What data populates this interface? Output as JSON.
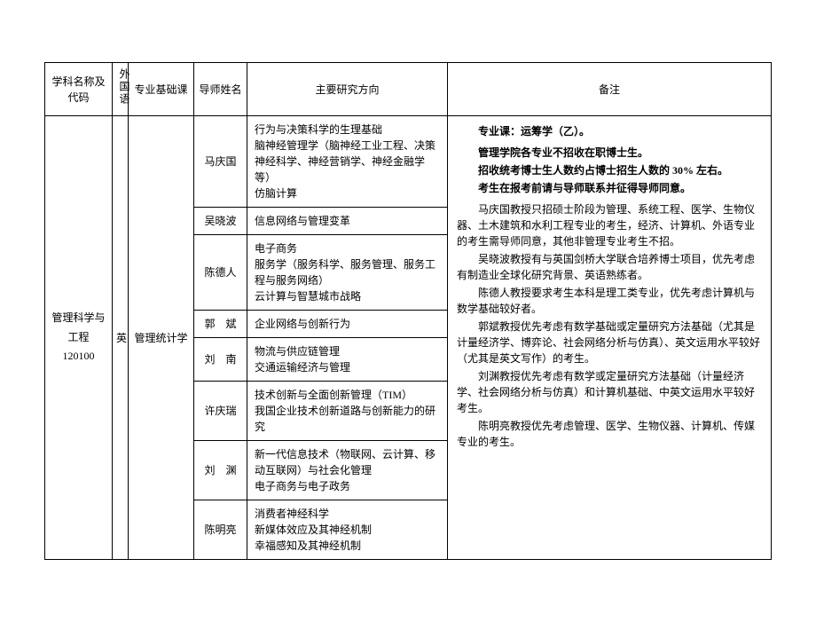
{
  "headers": {
    "subject": "学科名称及代码",
    "lang": "外国语",
    "course": "专业基础课",
    "advisor": "导师姓名",
    "research": "主要研究方向",
    "notes": "备注"
  },
  "subject": {
    "name": "管理科学与工程",
    "code": "120100"
  },
  "language": "英",
  "course": "管理统计学",
  "advisors": [
    {
      "name": "马庆国",
      "research": "行为与决策科学的生理基础\n脑神经管理学（脑神经工业工程、决策神经科学、神经营销学、神经金融学等）\n仿脑计算"
    },
    {
      "name": "吴晓波",
      "research": "信息网络与管理变革"
    },
    {
      "name": "陈德人",
      "research": "电子商务\n服务学（服务科学、服务管理、服务工程与服务网络）\n云计算与智慧城市战略"
    },
    {
      "name": "郭　斌",
      "research": "企业网络与创新行为"
    },
    {
      "name": "刘　南",
      "research": "物流与供应链管理\n交通运输经济与管理"
    },
    {
      "name": "许庆瑞",
      "research": "技术创新与全面创新管理（TIM）\n我国企业技术创新道路与创新能力的研究"
    },
    {
      "name": "刘　渊",
      "research": "新一代信息技术（物联网、云计算、移动互联网）与社会化管理\n电子商务与电子政务"
    },
    {
      "name": "陈明亮",
      "research": "消费者神经科学\n新媒体效应及其神经机制\n幸福感知及其神经机制"
    }
  ],
  "notes": {
    "intro1": "专业课：运筹学（乙）。",
    "intro2": "管理学院各专业不招收在职博士生。",
    "intro3": "招收统考博士生人数约占博士招生人数的 30% 左右。",
    "intro4": "考生在报考前请与导师联系并征得导师同意。",
    "p1": "马庆国教授只招硕士阶段为管理、系统工程、医学、生物仪器、土木建筑和水利工程专业的考生，经济、计算机、外语专业的考生需导师同意，其他非管理专业考生不招。",
    "p2": "吴晓波教授有与英国剑桥大学联合培养博士项目，优先考虑有制造业全球化研究背景、英语熟练者。",
    "p3": "陈德人教授要求考生本科是理工类专业，优先考虑计算机与数学基础较好者。",
    "p4": "郭斌教授优先考虑有数学基础或定量研究方法基础（尤其是计量经济学、博弈论、社会网络分析与仿真）、英文运用水平较好（尤其是英文写作）的考生。",
    "p5": "刘渊教授优先考虑有数学或定量研究方法基础（计量经济学、社会网络分析与仿真）和计算机基础、中英文运用水平较好考生。",
    "p6": "陈明亮教授优先考虑管理、医学、生物仪器、计算机、传媒专业的考生。"
  }
}
